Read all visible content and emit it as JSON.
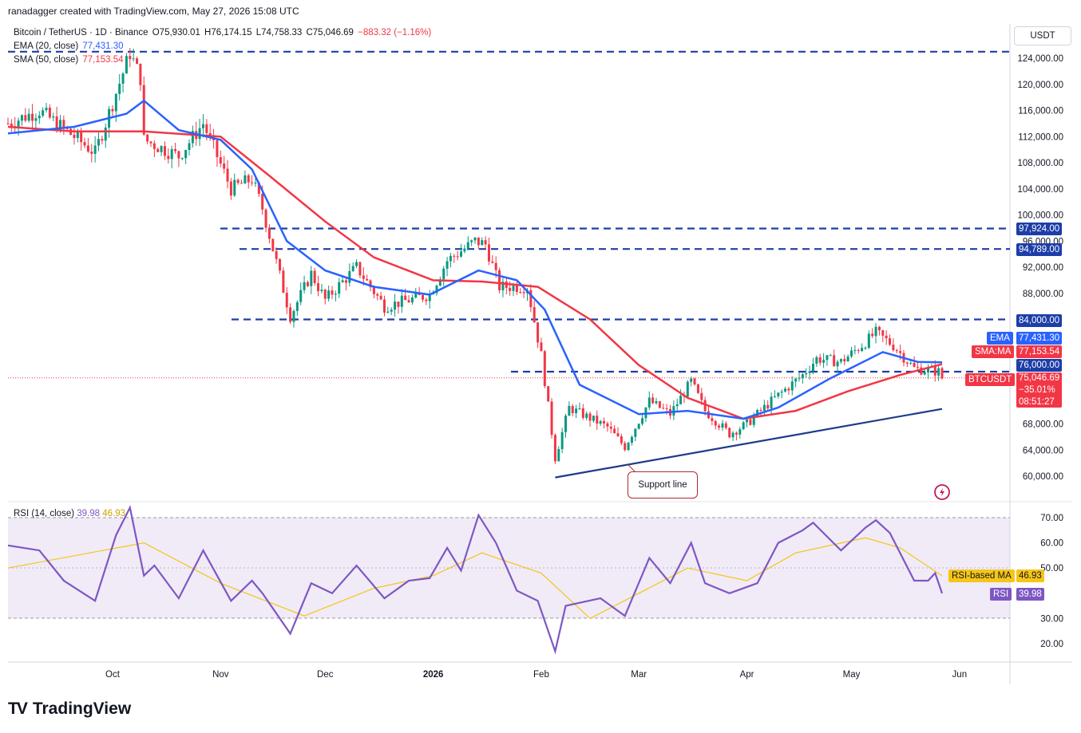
{
  "header": {
    "text": "ranadagger created with TradingView.com, May 27, 2026 15:08 UTC"
  },
  "legend": {
    "symbol": "Bitcoin / TetherUS · 1D · Binance",
    "o": "O75,930.01",
    "h": "H76,174.15",
    "l": "L74,758.33",
    "c": "C75,046.69",
    "chg": "−883.32 (−1.16%)",
    "ema_label": "EMA (20, close)",
    "ema_value": "77,431.30",
    "sma_label": "SMA (50, close)",
    "sma_value": "77,153.54"
  },
  "axis": {
    "unit_button": "USDT",
    "price_ticks": [
      "124,000.00",
      "120,000.00",
      "116,000.00",
      "112,000.00",
      "108,000.00",
      "104,000.00",
      "100,000.00",
      "96,000.00",
      "92,000.00",
      "88,000.00",
      "68,000.00",
      "64,000.00",
      "60,000.00"
    ],
    "rsi_ticks": [
      "70.00",
      "60.00",
      "50.00",
      "30.00",
      "20.00"
    ],
    "time_ticks": [
      "Oct",
      "Nov",
      "Dec",
      "2026",
      "Feb",
      "Mar",
      "Apr",
      "May",
      "Jun"
    ]
  },
  "levels": {
    "l97924": "97,924.00",
    "l94789": "94,789.00",
    "l84000": "84,000.00",
    "l76000": "76,000.00"
  },
  "tags": {
    "ema_name": "EMA",
    "ema_value": "77,431.30",
    "sma_name": "SMA:MA",
    "sma_value": "77,153.54",
    "symbol": "BTCUSDT",
    "price": "75,046.69",
    "pct": "−35.01%",
    "countdown": "08:51:27",
    "rsi_ma_name": "RSI-based MA",
    "rsi_ma_value": "46.93",
    "rsi_name": "RSI",
    "rsi_value": "39.98"
  },
  "annotation": {
    "support": "Support line"
  },
  "rsi_legend": {
    "label": "RSI (14, close)",
    "rsi": "39.98",
    "ma": "46.93"
  },
  "watermark": "TradingView",
  "chart_data": {
    "type": "candlestick",
    "y_range": [
      57000,
      126000
    ],
    "rsi_range": [
      15,
      77
    ],
    "colors": {
      "up": "#089981",
      "down": "#f23645",
      "ema": "#2962ff",
      "sma": "#f23645",
      "rsi": "#7e57c2",
      "rsi_ma": "#f5c518",
      "level": "#1d3ea8",
      "support": "#1e3a8a"
    },
    "horizontal_levels": [
      125000,
      97924,
      94789,
      84000,
      76000
    ],
    "support_line": {
      "from": [
        "2026-02-05",
        59800
      ],
      "to": [
        "2026-05-27",
        70300
      ]
    },
    "close_path": [
      [
        "2025-09-01",
        114000
      ],
      [
        "2025-09-10",
        116000
      ],
      [
        "2025-09-20",
        112000
      ],
      [
        "2025-09-26",
        109500
      ],
      [
        "2025-10-06",
        124800
      ],
      [
        "2025-10-09",
        121000
      ],
      [
        "2025-10-10",
        111500
      ],
      [
        "2025-10-20",
        109000
      ],
      [
        "2025-10-27",
        114000
      ],
      [
        "2025-11-04",
        104000
      ],
      [
        "2025-11-10",
        105500
      ],
      [
        "2025-11-13",
        101000
      ],
      [
        "2025-11-21",
        84500
      ],
      [
        "2025-11-27",
        91000
      ],
      [
        "2025-12-01",
        87000
      ],
      [
        "2025-12-10",
        92000
      ],
      [
        "2025-12-18",
        86000
      ],
      [
        "2025-12-31",
        87800
      ],
      [
        "2026-01-05",
        93000
      ],
      [
        "2026-01-13",
        96000
      ],
      [
        "2026-01-16",
        95500
      ],
      [
        "2026-01-20",
        89000
      ],
      [
        "2026-01-28",
        89000
      ],
      [
        "2026-02-01",
        78500
      ],
      [
        "2026-02-05",
        62800
      ],
      [
        "2026-02-09",
        70500
      ],
      [
        "2026-02-20",
        67500
      ],
      [
        "2026-02-25",
        64500
      ],
      [
        "2026-03-04",
        71500
      ],
      [
        "2026-03-10",
        69500
      ],
      [
        "2026-03-16",
        74500
      ],
      [
        "2026-03-20",
        70000
      ],
      [
        "2026-03-27",
        66500
      ],
      [
        "2026-04-01",
        68000
      ],
      [
        "2026-04-08",
        71500
      ],
      [
        "2026-04-17",
        75500
      ],
      [
        "2026-04-21",
        78000
      ],
      [
        "2026-04-28",
        77500
      ],
      [
        "2026-05-05",
        80500
      ],
      [
        "2026-05-08",
        82000
      ],
      [
        "2026-05-13",
        80000
      ],
      [
        "2026-05-19",
        76500
      ],
      [
        "2026-05-26",
        76000
      ],
      [
        "2026-05-27",
        75046.69
      ]
    ],
    "ema20": [
      [
        "2025-09-01",
        112500
      ],
      [
        "2025-09-20",
        113500
      ],
      [
        "2025-10-05",
        115500
      ],
      [
        "2025-10-10",
        117500
      ],
      [
        "2025-10-20",
        113000
      ],
      [
        "2025-11-01",
        111500
      ],
      [
        "2025-11-10",
        107000
      ],
      [
        "2025-11-20",
        96000
      ],
      [
        "2025-12-01",
        91500
      ],
      [
        "2025-12-15",
        89000
      ],
      [
        "2025-12-31",
        87800
      ],
      [
        "2026-01-14",
        91500
      ],
      [
        "2026-01-25",
        90000
      ],
      [
        "2026-02-02",
        85500
      ],
      [
        "2026-02-12",
        74000
      ],
      [
        "2026-03-01",
        69500
      ],
      [
        "2026-03-15",
        70000
      ],
      [
        "2026-03-31",
        68800
      ],
      [
        "2026-04-10",
        70500
      ],
      [
        "2026-04-25",
        75000
      ],
      [
        "2026-05-10",
        79000
      ],
      [
        "2026-05-20",
        77500
      ],
      [
        "2026-05-27",
        77431.3
      ]
    ],
    "sma50": [
      [
        "2025-09-01",
        113500
      ],
      [
        "2025-09-20",
        112800
      ],
      [
        "2025-10-10",
        112800
      ],
      [
        "2025-11-01",
        112000
      ],
      [
        "2025-11-15",
        106000
      ],
      [
        "2025-12-01",
        99000
      ],
      [
        "2025-12-15",
        93500
      ],
      [
        "2026-01-01",
        90000
      ],
      [
        "2026-01-15",
        89800
      ],
      [
        "2026-01-31",
        89000
      ],
      [
        "2026-02-15",
        84000
      ],
      [
        "2026-03-01",
        77000
      ],
      [
        "2026-03-15",
        72000
      ],
      [
        "2026-03-31",
        68800
      ],
      [
        "2026-04-15",
        70000
      ],
      [
        "2026-04-30",
        73000
      ],
      [
        "2026-05-15",
        75500
      ],
      [
        "2026-05-27",
        77153.54
      ]
    ],
    "rsi": [
      [
        "2025-09-01",
        59
      ],
      [
        "2025-09-10",
        57
      ],
      [
        "2025-09-17",
        45
      ],
      [
        "2025-09-26",
        37
      ],
      [
        "2025-10-02",
        63
      ],
      [
        "2025-10-06",
        74
      ],
      [
        "2025-10-10",
        47
      ],
      [
        "2025-10-13",
        51
      ],
      [
        "2025-10-20",
        38
      ],
      [
        "2025-10-27",
        57
      ],
      [
        "2025-11-04",
        37
      ],
      [
        "2025-11-10",
        45
      ],
      [
        "2025-11-13",
        40
      ],
      [
        "2025-11-21",
        24
      ],
      [
        "2025-11-27",
        44
      ],
      [
        "2025-12-03",
        40
      ],
      [
        "2025-12-10",
        51
      ],
      [
        "2025-12-18",
        38
      ],
      [
        "2025-12-25",
        45
      ],
      [
        "2025-12-31",
        46
      ],
      [
        "2026-01-05",
        58
      ],
      [
        "2026-01-09",
        49
      ],
      [
        "2026-01-14",
        71
      ],
      [
        "2026-01-19",
        60
      ],
      [
        "2026-01-25",
        41
      ],
      [
        "2026-01-31",
        37
      ],
      [
        "2026-02-05",
        17
      ],
      [
        "2026-02-08",
        35
      ],
      [
        "2026-02-18",
        38
      ],
      [
        "2026-02-25",
        31
      ],
      [
        "2026-03-04",
        54
      ],
      [
        "2026-03-10",
        44
      ],
      [
        "2026-03-16",
        60
      ],
      [
        "2026-03-20",
        44
      ],
      [
        "2026-03-27",
        40
      ],
      [
        "2026-04-04",
        44
      ],
      [
        "2026-04-10",
        60
      ],
      [
        "2026-04-17",
        65
      ],
      [
        "2026-04-20",
        68
      ],
      [
        "2026-04-28",
        57
      ],
      [
        "2026-05-05",
        66
      ],
      [
        "2026-05-08",
        69
      ],
      [
        "2026-05-12",
        64
      ],
      [
        "2026-05-19",
        45
      ],
      [
        "2026-05-23",
        45
      ],
      [
        "2026-05-25",
        48
      ],
      [
        "2026-05-27",
        39.98
      ]
    ],
    "rsi_ma": [
      [
        "2025-09-01",
        50
      ],
      [
        "2025-10-10",
        60
      ],
      [
        "2025-11-01",
        44
      ],
      [
        "2025-11-25",
        31
      ],
      [
        "2025-12-15",
        42
      ],
      [
        "2026-01-01",
        47
      ],
      [
        "2026-01-15",
        56
      ],
      [
        "2026-02-01",
        48
      ],
      [
        "2026-02-15",
        30
      ],
      [
        "2026-03-01",
        40
      ],
      [
        "2026-03-15",
        50
      ],
      [
        "2026-04-01",
        45
      ],
      [
        "2026-04-15",
        56
      ],
      [
        "2026-05-05",
        62
      ],
      [
        "2026-05-15",
        58
      ],
      [
        "2026-05-27",
        46.93
      ]
    ]
  }
}
